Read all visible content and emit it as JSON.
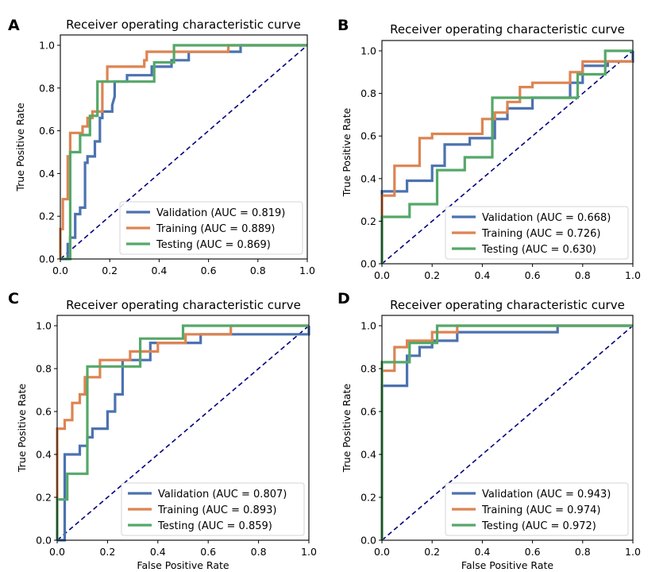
{
  "figure": {
    "colors": {
      "validation": "#4C72B0",
      "training": "#DD8452",
      "testing": "#55A868",
      "diagonal": "#000080"
    }
  },
  "chart_data": [
    {
      "panel": "A",
      "type": "line",
      "title": "Receiver operating characteristic curve",
      "xlabel": "",
      "ylabel": "True Positive Rate",
      "xlim": [
        0,
        1
      ],
      "ylim": [
        0,
        1
      ],
      "xticks": [
        "0.0",
        "0.2",
        "0.4",
        "0.6",
        "0.8",
        "1.0"
      ],
      "yticks": [
        "0.0",
        "0.2",
        "0.4",
        "0.6",
        "0.8",
        "1.0"
      ],
      "legend_position": "lower-right",
      "grid": false,
      "series": [
        {
          "name": "Validation (AUC = 0.819)",
          "key": "validation",
          "points": [
            [
              0,
              0
            ],
            [
              0.03,
              0
            ],
            [
              0.03,
              0.07
            ],
            [
              0.04,
              0.07
            ],
            [
              0.04,
              0.1
            ],
            [
              0.06,
              0.1
            ],
            [
              0.06,
              0.21
            ],
            [
              0.08,
              0.21
            ],
            [
              0.08,
              0.24
            ],
            [
              0.1,
              0.24
            ],
            [
              0.1,
              0.45
            ],
            [
              0.11,
              0.45
            ],
            [
              0.11,
              0.48
            ],
            [
              0.14,
              0.48
            ],
            [
              0.14,
              0.55
            ],
            [
              0.16,
              0.55
            ],
            [
              0.16,
              0.66
            ],
            [
              0.17,
              0.66
            ],
            [
              0.17,
              0.69
            ],
            [
              0.21,
              0.69
            ],
            [
              0.21,
              0.72
            ],
            [
              0.22,
              0.76
            ],
            [
              0.22,
              0.83
            ],
            [
              0.27,
              0.83
            ],
            [
              0.27,
              0.86
            ],
            [
              0.37,
              0.86
            ],
            [
              0.37,
              0.9
            ],
            [
              0.45,
              0.9
            ],
            [
              0.45,
              0.93
            ],
            [
              0.52,
              0.93
            ],
            [
              0.52,
              0.97
            ],
            [
              0.73,
              0.97
            ],
            [
              0.73,
              1.0
            ],
            [
              1.0,
              1.0
            ]
          ]
        },
        {
          "name": "Training (AUC = 0.889)",
          "key": "training",
          "points": [
            [
              0,
              0
            ],
            [
              0,
              0.14
            ],
            [
              0.01,
              0.14
            ],
            [
              0.01,
              0.28
            ],
            [
              0.03,
              0.28
            ],
            [
              0.03,
              0.48
            ],
            [
              0.04,
              0.48
            ],
            [
              0.04,
              0.59
            ],
            [
              0.09,
              0.59
            ],
            [
              0.09,
              0.62
            ],
            [
              0.11,
              0.62
            ],
            [
              0.11,
              0.66
            ],
            [
              0.13,
              0.66
            ],
            [
              0.13,
              0.69
            ],
            [
              0.17,
              0.69
            ],
            [
              0.17,
              0.83
            ],
            [
              0.19,
              0.83
            ],
            [
              0.19,
              0.9
            ],
            [
              0.34,
              0.9
            ],
            [
              0.34,
              0.93
            ],
            [
              0.35,
              0.93
            ],
            [
              0.35,
              0.97
            ],
            [
              0.68,
              0.97
            ],
            [
              0.68,
              1.0
            ],
            [
              1.0,
              1.0
            ]
          ]
        },
        {
          "name": "Testing (AUC = 0.869)",
          "key": "testing",
          "points": [
            [
              0,
              0
            ],
            [
              0.04,
              0
            ],
            [
              0.04,
              0.5
            ],
            [
              0.08,
              0.5
            ],
            [
              0.08,
              0.58
            ],
            [
              0.12,
              0.58
            ],
            [
              0.12,
              0.67
            ],
            [
              0.15,
              0.67
            ],
            [
              0.15,
              0.83
            ],
            [
              0.38,
              0.83
            ],
            [
              0.38,
              0.92
            ],
            [
              0.46,
              0.92
            ],
            [
              0.46,
              1.0
            ],
            [
              1.0,
              1.0
            ]
          ]
        }
      ]
    },
    {
      "panel": "B",
      "type": "line",
      "title": "Receiver operating characteristic curve",
      "xlabel": "",
      "ylabel": "True Positive Rate",
      "xlim": [
        0,
        1
      ],
      "ylim": [
        0,
        1
      ],
      "xticks": [
        "0.0",
        "0.2",
        "0.4",
        "0.6",
        "0.8",
        "1.0"
      ],
      "yticks": [
        "0.0",
        "0.2",
        "0.4",
        "0.6",
        "0.8",
        "1.0"
      ],
      "legend_position": "lower-right",
      "grid": false,
      "series": [
        {
          "name": "Validation (AUC = 0.668)",
          "key": "validation",
          "points": [
            [
              0,
              0
            ],
            [
              0,
              0.34
            ],
            [
              0.1,
              0.34
            ],
            [
              0.1,
              0.39
            ],
            [
              0.2,
              0.39
            ],
            [
              0.2,
              0.46
            ],
            [
              0.25,
              0.46
            ],
            [
              0.25,
              0.56
            ],
            [
              0.35,
              0.56
            ],
            [
              0.35,
              0.59
            ],
            [
              0.45,
              0.59
            ],
            [
              0.45,
              0.68
            ],
            [
              0.5,
              0.68
            ],
            [
              0.5,
              0.73
            ],
            [
              0.6,
              0.73
            ],
            [
              0.6,
              0.78
            ],
            [
              0.75,
              0.78
            ],
            [
              0.75,
              0.85
            ],
            [
              0.8,
              0.85
            ],
            [
              0.8,
              0.93
            ],
            [
              0.9,
              0.93
            ],
            [
              0.9,
              0.95
            ],
            [
              1.0,
              0.95
            ],
            [
              1.0,
              1.0
            ]
          ]
        },
        {
          "name": "Training (AUC = 0.726)",
          "key": "training",
          "points": [
            [
              0,
              0
            ],
            [
              0,
              0.32
            ],
            [
              0.05,
              0.32
            ],
            [
              0.05,
              0.46
            ],
            [
              0.15,
              0.46
            ],
            [
              0.15,
              0.59
            ],
            [
              0.2,
              0.59
            ],
            [
              0.2,
              0.61
            ],
            [
              0.4,
              0.61
            ],
            [
              0.4,
              0.68
            ],
            [
              0.45,
              0.68
            ],
            [
              0.45,
              0.71
            ],
            [
              0.5,
              0.71
            ],
            [
              0.5,
              0.76
            ],
            [
              0.55,
              0.76
            ],
            [
              0.55,
              0.83
            ],
            [
              0.6,
              0.83
            ],
            [
              0.6,
              0.85
            ],
            [
              0.75,
              0.85
            ],
            [
              0.75,
              0.9
            ],
            [
              0.8,
              0.9
            ],
            [
              0.8,
              0.95
            ],
            [
              1.0,
              0.95
            ]
          ]
        },
        {
          "name": "Testing (AUC = 0.630)",
          "key": "testing",
          "points": [
            [
              0,
              0
            ],
            [
              0,
              0.22
            ],
            [
              0.11,
              0.22
            ],
            [
              0.11,
              0.28
            ],
            [
              0.22,
              0.28
            ],
            [
              0.22,
              0.44
            ],
            [
              0.33,
              0.44
            ],
            [
              0.33,
              0.5
            ],
            [
              0.44,
              0.5
            ],
            [
              0.44,
              0.78
            ],
            [
              0.78,
              0.78
            ],
            [
              0.78,
              0.89
            ],
            [
              0.89,
              0.89
            ],
            [
              0.89,
              1.0
            ],
            [
              1.0,
              1.0
            ]
          ]
        }
      ]
    },
    {
      "panel": "C",
      "type": "line",
      "title": "Receiver operating characteristic curve",
      "xlabel": "False Positive Rate",
      "ylabel": "True Positive Rate",
      "xlim": [
        0,
        1
      ],
      "ylim": [
        0,
        1
      ],
      "xticks": [
        "0.0",
        "0.2",
        "0.4",
        "0.6",
        "0.8",
        "1.0"
      ],
      "yticks": [
        "0.0",
        "0.2",
        "0.4",
        "0.6",
        "0.8",
        "1.0"
      ],
      "legend_position": "lower-right",
      "grid": false,
      "series": [
        {
          "name": "Validation (AUC = 0.807)",
          "key": "validation",
          "points": [
            [
              0,
              0
            ],
            [
              0.03,
              0
            ],
            [
              0.03,
              0.4
            ],
            [
              0.09,
              0.4
            ],
            [
              0.09,
              0.44
            ],
            [
              0.12,
              0.44
            ],
            [
              0.12,
              0.48
            ],
            [
              0.14,
              0.48
            ],
            [
              0.14,
              0.52
            ],
            [
              0.2,
              0.52
            ],
            [
              0.2,
              0.6
            ],
            [
              0.23,
              0.6
            ],
            [
              0.23,
              0.68
            ],
            [
              0.26,
              0.68
            ],
            [
              0.26,
              0.84
            ],
            [
              0.37,
              0.84
            ],
            [
              0.37,
              0.92
            ],
            [
              0.57,
              0.92
            ],
            [
              0.57,
              0.96
            ],
            [
              1.0,
              0.96
            ],
            [
              1.0,
              1.0
            ]
          ]
        },
        {
          "name": "Training (AUC = 0.893)",
          "key": "training",
          "points": [
            [
              0,
              0
            ],
            [
              0,
              0.52
            ],
            [
              0.03,
              0.52
            ],
            [
              0.03,
              0.56
            ],
            [
              0.06,
              0.56
            ],
            [
              0.06,
              0.64
            ],
            [
              0.09,
              0.64
            ],
            [
              0.09,
              0.68
            ],
            [
              0.11,
              0.68
            ],
            [
              0.11,
              0.76
            ],
            [
              0.17,
              0.76
            ],
            [
              0.17,
              0.84
            ],
            [
              0.29,
              0.84
            ],
            [
              0.29,
              0.88
            ],
            [
              0.4,
              0.88
            ],
            [
              0.4,
              0.92
            ],
            [
              0.51,
              0.92
            ],
            [
              0.51,
              0.96
            ],
            [
              0.69,
              0.96
            ],
            [
              0.69,
              1.0
            ],
            [
              1.0,
              1.0
            ]
          ]
        },
        {
          "name": "Testing (AUC = 0.859)",
          "key": "testing",
          "points": [
            [
              0,
              0
            ],
            [
              0,
              0.19
            ],
            [
              0.04,
              0.19
            ],
            [
              0.04,
              0.31
            ],
            [
              0.12,
              0.31
            ],
            [
              0.12,
              0.81
            ],
            [
              0.33,
              0.81
            ],
            [
              0.33,
              0.94
            ],
            [
              0.5,
              0.94
            ],
            [
              0.5,
              1.0
            ],
            [
              1.0,
              1.0
            ]
          ]
        }
      ]
    },
    {
      "panel": "D",
      "type": "line",
      "title": "Receiver operating characteristic curve",
      "xlabel": "False Positive Rate",
      "ylabel": "True Positive Rate",
      "xlim": [
        0,
        1
      ],
      "ylim": [
        0,
        1
      ],
      "xticks": [
        "0.0",
        "0.2",
        "0.4",
        "0.6",
        "0.8",
        "1.0"
      ],
      "yticks": [
        "0.0",
        "0.2",
        "0.4",
        "0.6",
        "0.8",
        "1.0"
      ],
      "legend_position": "lower-right",
      "grid": false,
      "series": [
        {
          "name": "Validation (AUC = 0.943)",
          "key": "validation",
          "points": [
            [
              0,
              0
            ],
            [
              0,
              0.72
            ],
            [
              0.1,
              0.72
            ],
            [
              0.1,
              0.86
            ],
            [
              0.15,
              0.86
            ],
            [
              0.15,
              0.9
            ],
            [
              0.2,
              0.9
            ],
            [
              0.2,
              0.93
            ],
            [
              0.3,
              0.93
            ],
            [
              0.3,
              0.97
            ],
            [
              0.7,
              0.97
            ],
            [
              0.7,
              1.0
            ],
            [
              1.0,
              1.0
            ]
          ]
        },
        {
          "name": "Training (AUC = 0.974)",
          "key": "training",
          "points": [
            [
              0,
              0
            ],
            [
              0,
              0.79
            ],
            [
              0.05,
              0.79
            ],
            [
              0.05,
              0.9
            ],
            [
              0.1,
              0.9
            ],
            [
              0.1,
              0.93
            ],
            [
              0.2,
              0.93
            ],
            [
              0.2,
              0.97
            ],
            [
              0.3,
              0.97
            ],
            [
              0.3,
              1.0
            ],
            [
              1.0,
              1.0
            ]
          ]
        },
        {
          "name": "Testing (AUC = 0.972)",
          "key": "testing",
          "points": [
            [
              0,
              0
            ],
            [
              0,
              0.83
            ],
            [
              0.11,
              0.83
            ],
            [
              0.11,
              0.92
            ],
            [
              0.22,
              0.92
            ],
            [
              0.22,
              1.0
            ],
            [
              1.0,
              1.0
            ]
          ]
        }
      ]
    }
  ]
}
